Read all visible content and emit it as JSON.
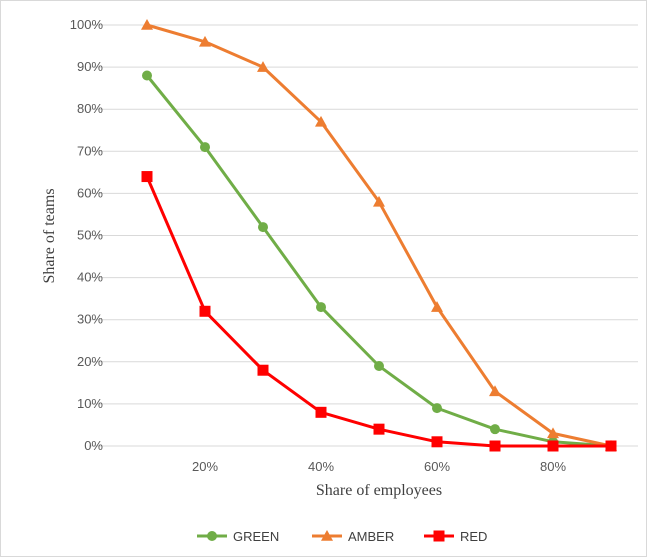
{
  "chart_data": {
    "type": "line",
    "title": "",
    "xlabel": "Share of employees",
    "ylabel": "Share of teams",
    "x": [
      0.1,
      0.2,
      0.3,
      0.4,
      0.5,
      0.6,
      0.7,
      0.8,
      0.9
    ],
    "x_ticks": [
      0.2,
      0.4,
      0.6,
      0.8
    ],
    "x_tick_labels": [
      "20%",
      "40%",
      "60%",
      "80%"
    ],
    "xlim": [
      0.0,
      1.0
    ],
    "y_ticks": [
      0,
      0.1,
      0.2,
      0.3,
      0.4,
      0.5,
      0.6,
      0.7,
      0.8,
      0.9,
      1.0
    ],
    "y_tick_labels": [
      "0%",
      "10%",
      "20%",
      "30%",
      "40%",
      "50%",
      "60%",
      "70%",
      "80%",
      "90%",
      "100%"
    ],
    "ylim": [
      0,
      1.0
    ],
    "grid": "horizontal",
    "legend_position": "bottom",
    "series": [
      {
        "name": "GREEN",
        "color": "#70ad47",
        "marker": "circle",
        "values": [
          0.88,
          0.71,
          0.52,
          0.33,
          0.19,
          0.09,
          0.04,
          0.01,
          0.0
        ]
      },
      {
        "name": "AMBER",
        "color": "#ed7d31",
        "marker": "triangle",
        "values": [
          1.0,
          0.96,
          0.9,
          0.77,
          0.58,
          0.33,
          0.13,
          0.03,
          0.0
        ]
      },
      {
        "name": "RED",
        "color": "#ff0000",
        "marker": "square",
        "values": [
          0.64,
          0.32,
          0.18,
          0.08,
          0.04,
          0.01,
          0.0,
          0.0,
          0.0
        ]
      }
    ]
  }
}
